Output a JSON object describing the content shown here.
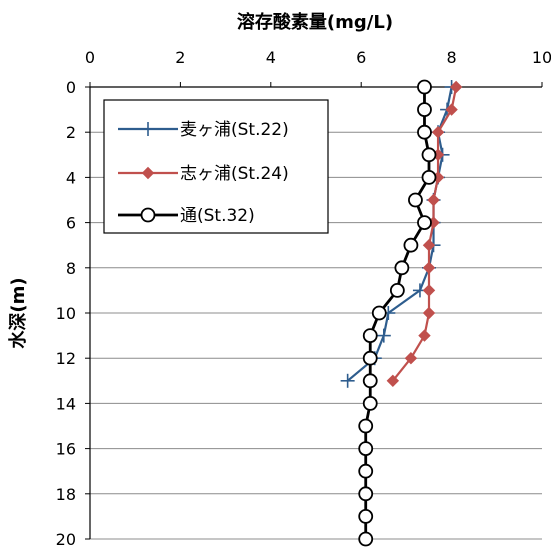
{
  "chart_data": {
    "type": "line",
    "title": "溶存酸素量(mg/L)",
    "xlabel": "溶存酸素量(mg/L)",
    "ylabel": "水深(m)",
    "x_axis_position": "top",
    "y_axis_inverted": true,
    "xlim": [
      0,
      10
    ],
    "ylim": [
      0,
      20
    ],
    "x_ticks": [
      "0",
      "2",
      "4",
      "6",
      "8",
      "10"
    ],
    "y_ticks": [
      "0",
      "2",
      "4",
      "6",
      "8",
      "10",
      "12",
      "14",
      "16",
      "18",
      "20"
    ],
    "grid": "horizontal",
    "legend_position": "upper-left",
    "series": [
      {
        "name": "麦ヶ浦(St.22)",
        "color": "#2e5d8e",
        "marker": "plus",
        "points": [
          [
            8.0,
            0
          ],
          [
            7.9,
            1
          ],
          [
            7.7,
            2
          ],
          [
            7.8,
            3
          ],
          [
            7.7,
            4
          ],
          [
            7.6,
            5
          ],
          [
            7.6,
            6
          ],
          [
            7.6,
            7
          ],
          [
            7.5,
            8
          ],
          [
            7.3,
            9
          ],
          [
            6.6,
            10
          ],
          [
            6.5,
            11
          ],
          [
            6.3,
            12
          ],
          [
            5.7,
            13
          ]
        ]
      },
      {
        "name": "志ヶ浦(St.24)",
        "color": "#c0504d",
        "marker": "diamond",
        "points": [
          [
            8.1,
            0
          ],
          [
            8.0,
            1
          ],
          [
            7.7,
            2
          ],
          [
            7.7,
            3
          ],
          [
            7.7,
            4
          ],
          [
            7.6,
            5
          ],
          [
            7.6,
            6
          ],
          [
            7.5,
            7
          ],
          [
            7.5,
            8
          ],
          [
            7.5,
            9
          ],
          [
            7.5,
            10
          ],
          [
            7.4,
            11
          ],
          [
            7.1,
            12
          ],
          [
            6.7,
            13
          ]
        ]
      },
      {
        "name": "通(St.32)",
        "color": "#000000",
        "marker": "circle",
        "points": [
          [
            7.4,
            0
          ],
          [
            7.4,
            1
          ],
          [
            7.4,
            2
          ],
          [
            7.5,
            3
          ],
          [
            7.5,
            4
          ],
          [
            7.2,
            5
          ],
          [
            7.4,
            6
          ],
          [
            7.1,
            7
          ],
          [
            6.9,
            8
          ],
          [
            6.8,
            9
          ],
          [
            6.4,
            10
          ],
          [
            6.2,
            11
          ],
          [
            6.2,
            12
          ],
          [
            6.2,
            13
          ],
          [
            6.2,
            14
          ],
          [
            6.1,
            15
          ],
          [
            6.1,
            16
          ],
          [
            6.1,
            17
          ],
          [
            6.1,
            18
          ],
          [
            6.1,
            19
          ],
          [
            6.1,
            20
          ]
        ]
      }
    ]
  }
}
